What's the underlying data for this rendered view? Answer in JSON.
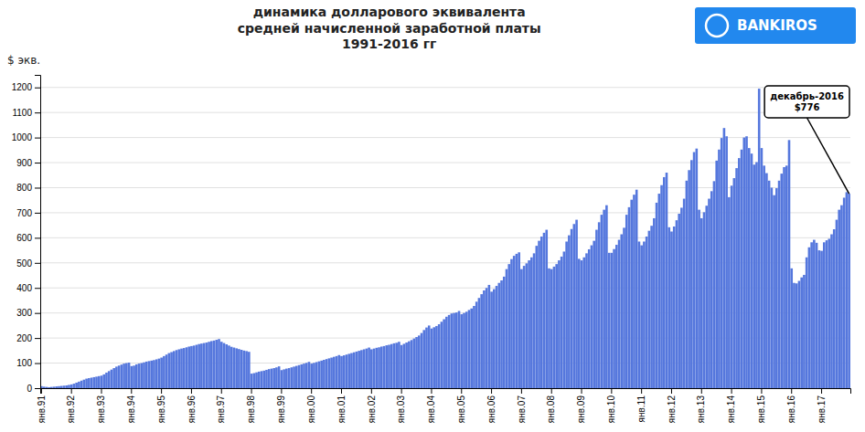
{
  "chart_data": {
    "type": "bar",
    "title": "динамика долларового эквивалента\nсредней начисленной заработной платы",
    "subtitle": "1991-2016 гг",
    "y_label": "$ экв.",
    "annotation": "декабрь-2016\n$776",
    "logo": {
      "text": "BANKIROS",
      "color": "#2288ee"
    },
    "color": "#5577dd",
    "grid": true,
    "ylim": [
      0,
      1250
    ],
    "yticks": [
      0,
      100,
      200,
      300,
      400,
      500,
      600,
      700,
      800,
      900,
      1000,
      1100,
      1200
    ],
    "categories": [
      "янв.91",
      null,
      null,
      null,
      null,
      null,
      null,
      null,
      null,
      null,
      null,
      null,
      "янв.92",
      null,
      null,
      null,
      null,
      null,
      null,
      null,
      null,
      null,
      null,
      null,
      "янв.93",
      null,
      null,
      null,
      null,
      null,
      null,
      null,
      null,
      null,
      null,
      null,
      "янв.94",
      null,
      null,
      null,
      null,
      null,
      null,
      null,
      null,
      null,
      null,
      null,
      "янв.95",
      null,
      null,
      null,
      null,
      null,
      null,
      null,
      null,
      null,
      null,
      null,
      "янв.96",
      null,
      null,
      null,
      null,
      null,
      null,
      null,
      null,
      null,
      null,
      null,
      "янв.97",
      null,
      null,
      null,
      null,
      null,
      null,
      null,
      null,
      null,
      null,
      null,
      "янв.98",
      null,
      null,
      null,
      null,
      null,
      null,
      null,
      null,
      null,
      null,
      null,
      "янв.99",
      null,
      null,
      null,
      null,
      null,
      null,
      null,
      null,
      null,
      null,
      null,
      "янв.00",
      null,
      null,
      null,
      null,
      null,
      null,
      null,
      null,
      null,
      null,
      null,
      "янв.01",
      null,
      null,
      null,
      null,
      null,
      null,
      null,
      null,
      null,
      null,
      null,
      "янв.02",
      null,
      null,
      null,
      null,
      null,
      null,
      null,
      null,
      null,
      null,
      null,
      "янв.03",
      null,
      null,
      null,
      null,
      null,
      null,
      null,
      null,
      null,
      null,
      null,
      "янв.04",
      null,
      null,
      null,
      null,
      null,
      null,
      null,
      null,
      null,
      null,
      null,
      "янв.05",
      null,
      null,
      null,
      null,
      null,
      null,
      null,
      null,
      null,
      null,
      null,
      "янв.06",
      null,
      null,
      null,
      null,
      null,
      null,
      null,
      null,
      null,
      null,
      null,
      "янв.07",
      null,
      null,
      null,
      null,
      null,
      null,
      null,
      null,
      null,
      null,
      null,
      "янв.08",
      null,
      null,
      null,
      null,
      null,
      null,
      null,
      null,
      null,
      null,
      null,
      "янв.09",
      null,
      null,
      null,
      null,
      null,
      null,
      null,
      null,
      null,
      null,
      null,
      "янв.10",
      null,
      null,
      null,
      null,
      null,
      null,
      null,
      null,
      null,
      null,
      null,
      "янв.11",
      null,
      null,
      null,
      null,
      null,
      null,
      null,
      null,
      null,
      null,
      null,
      "янв.12",
      null,
      null,
      null,
      null,
      null,
      null,
      null,
      null,
      null,
      null,
      null,
      "янв.13",
      null,
      null,
      null,
      null,
      null,
      null,
      null,
      null,
      null,
      null,
      null,
      "янв.14",
      null,
      null,
      null,
      null,
      null,
      null,
      null,
      null,
      null,
      null,
      null,
      "янв.15",
      null,
      null,
      null,
      null,
      null,
      null,
      null,
      null,
      null,
      null,
      null,
      "янв.16",
      null,
      null,
      null,
      null,
      null,
      null,
      null,
      null,
      null,
      null,
      null,
      "янв.17",
      null,
      null,
      null,
      null,
      null,
      null,
      null,
      null,
      null,
      null,
      null
    ],
    "values": [
      8,
      6,
      5,
      4,
      5,
      6,
      7,
      8,
      9,
      10,
      11,
      13,
      15,
      18,
      22,
      26,
      30,
      34,
      38,
      40,
      42,
      44,
      46,
      48,
      50,
      55,
      62,
      68,
      74,
      80,
      86,
      90,
      94,
      98,
      100,
      102,
      88,
      90,
      95,
      98,
      100,
      103,
      106,
      108,
      110,
      112,
      115,
      118,
      122,
      128,
      134,
      140,
      144,
      148,
      152,
      155,
      158,
      160,
      163,
      166,
      168,
      170,
      173,
      176,
      178,
      180,
      182,
      185,
      188,
      190,
      193,
      196,
      185,
      180,
      175,
      170,
      165,
      162,
      159,
      156,
      153,
      150,
      148,
      145,
      58,
      60,
      63,
      66,
      68,
      70,
      73,
      76,
      78,
      80,
      83,
      87,
      72,
      75,
      78,
      80,
      83,
      86,
      89,
      92,
      95,
      98,
      101,
      105,
      98,
      101,
      104,
      107,
      110,
      113,
      116,
      119,
      122,
      125,
      128,
      132,
      128,
      131,
      134,
      137,
      140,
      143,
      146,
      149,
      152,
      155,
      158,
      162,
      155,
      158,
      161,
      163,
      166,
      168,
      171,
      173,
      176,
      179,
      181,
      185,
      172,
      177,
      182,
      187,
      192,
      198,
      204,
      210,
      220,
      232,
      242,
      250,
      238,
      243,
      248,
      255,
      265,
      275,
      285,
      292,
      298,
      300,
      302,
      308,
      295,
      300,
      305,
      312,
      318,
      328,
      345,
      360,
      375,
      390,
      400,
      412,
      385,
      395,
      408,
      420,
      430,
      445,
      475,
      495,
      515,
      528,
      536,
      542,
      475,
      488,
      498,
      510,
      522,
      538,
      568,
      588,
      605,
      620,
      632,
      478,
      475,
      485,
      495,
      510,
      525,
      545,
      585,
      610,
      635,
      655,
      672,
      516,
      510,
      522,
      538,
      554,
      570,
      588,
      632,
      662,
      692,
      712,
      730,
      540,
      540,
      555,
      572,
      592,
      614,
      640,
      692,
      722,
      752,
      772,
      792,
      585,
      570,
      585,
      605,
      628,
      648,
      678,
      740,
      776,
      810,
      842,
      860,
      642,
      625,
      645,
      670,
      696,
      720,
      756,
      828,
      870,
      910,
      942,
      956,
      712,
      678,
      702,
      728,
      756,
      786,
      826,
      908,
      952,
      998,
      1038,
      1005,
      762,
      808,
      838,
      878,
      918,
      952,
      1000,
      1005,
      958,
      936,
      892,
      902,
      1195,
      958,
      888,
      858,
      828,
      800,
      770,
      798,
      828,
      856,
      882,
      888,
      990,
      478,
      420,
      418,
      428,
      442,
      452,
      522,
      562,
      582,
      592,
      580,
      550,
      548,
      582,
      590,
      596,
      614,
      634,
      672,
      712,
      730,
      760,
      782,
      776
    ]
  }
}
